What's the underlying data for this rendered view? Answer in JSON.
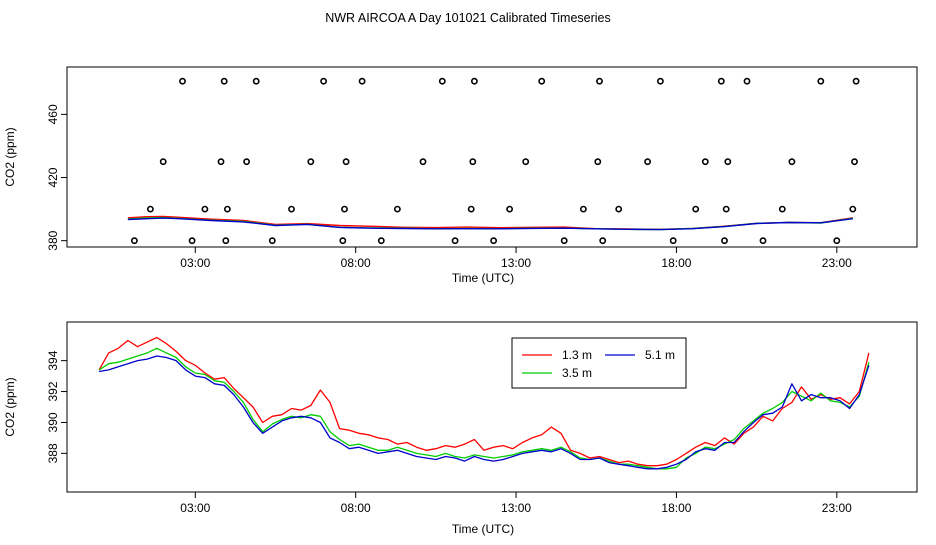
{
  "title": "NWR AIRCOA A  Day 101021  Calibrated Timeseries",
  "chart_data": [
    {
      "type": "scatter+line",
      "name": "top",
      "xlabel": "Time (UTC)",
      "ylabel": "CO2 (ppm)",
      "xlim": [
        -1.0,
        25.5
      ],
      "ylim": [
        376,
        490
      ],
      "xticks": [
        3,
        8,
        13,
        18,
        23
      ],
      "xtick_labels": [
        "03:00",
        "08:00",
        "13:00",
        "18:00",
        "23:00"
      ],
      "yticks": [
        380,
        420,
        460
      ],
      "ytick_labels": [
        "380",
        "420",
        "460"
      ],
      "calibration_points": {
        "x": [
          1.1,
          1.6,
          2.0,
          2.6,
          2.9,
          3.3,
          3.8,
          3.9,
          3.95,
          4.0,
          4.6,
          4.9,
          5.4,
          6.0,
          6.6,
          7.0,
          7.6,
          7.65,
          7.7,
          8.2,
          8.8,
          9.3,
          10.1,
          10.7,
          11.1,
          11.6,
          11.65,
          11.7,
          12.3,
          12.8,
          13.3,
          13.8,
          14.5,
          15.1,
          15.55,
          15.6,
          15.7,
          16.2,
          17.1,
          17.5,
          17.9,
          18.6,
          18.9,
          19.4,
          19.5,
          19.55,
          19.6,
          20.2,
          20.7,
          21.3,
          21.6,
          22.5,
          23.0,
          23.5,
          23.55,
          23.6
        ]
      },
      "series": [
        {
          "name": "1.3 m",
          "color": "#ff0000",
          "x": [
            0.9,
            1.5,
            2.0,
            2.5,
            3.5,
            4.5,
            5.5,
            6.5,
            7.5,
            8.5,
            9.5,
            10.5,
            11.5,
            12.5,
            13.5,
            14.5,
            15.5,
            16.5,
            17.5,
            18.5,
            19.5,
            20.5,
            21.5,
            22.5,
            23.5
          ],
          "values": [
            394.5,
            395.2,
            395.4,
            394.8,
            393.6,
            392.8,
            390.3,
            390.8,
            389.6,
            389.1,
            388.5,
            388.3,
            388.6,
            388.2,
            388.5,
            388.6,
            387.6,
            387.4,
            387.2,
            387.8,
            389.2,
            391.0,
            391.5,
            391.4,
            394.5
          ]
        },
        {
          "name": "3.5 m",
          "color": "#00cd00",
          "x": [
            0.9,
            1.5,
            2.0,
            2.5,
            3.5,
            4.5,
            5.5,
            6.5,
            7.5,
            8.5,
            9.5,
            10.5,
            11.5,
            12.5,
            13.5,
            14.5,
            15.5,
            16.5,
            17.5,
            18.5,
            19.5,
            20.5,
            21.5,
            22.5,
            23.5
          ],
          "values": [
            393.8,
            394.4,
            394.6,
            394.1,
            393.0,
            392.2,
            389.8,
            390.4,
            388.5,
            388.1,
            387.9,
            387.6,
            387.7,
            387.6,
            387.9,
            388.0,
            387.5,
            387.2,
            387.0,
            387.7,
            389.0,
            391.0,
            391.6,
            391.2,
            394.2
          ]
        },
        {
          "name": "5.1 m",
          "color": "#0000cd",
          "x": [
            0.9,
            1.5,
            2.0,
            2.5,
            3.5,
            4.5,
            5.5,
            6.5,
            7.5,
            8.5,
            9.5,
            10.5,
            11.5,
            12.5,
            13.5,
            14.5,
            15.5,
            16.5,
            17.5,
            18.5,
            19.5,
            20.5,
            21.5,
            22.5,
            23.5
          ],
          "values": [
            393.4,
            393.9,
            394.3,
            393.9,
            392.8,
            391.9,
            389.6,
            390.3,
            388.4,
            387.9,
            387.7,
            387.5,
            387.6,
            387.5,
            387.8,
            387.9,
            387.5,
            387.2,
            387.0,
            387.6,
            388.9,
            390.9,
            391.5,
            391.3,
            393.9
          ]
        }
      ]
    },
    {
      "type": "line",
      "name": "bottom",
      "xlabel": "Time (UTC)",
      "ylabel": "CO2 (ppm)",
      "xlim": [
        -1.0,
        25.5
      ],
      "ylim": [
        385.5,
        396.5
      ],
      "xticks": [
        3,
        8,
        13,
        18,
        23
      ],
      "xtick_labels": [
        "03:00",
        "08:00",
        "13:00",
        "18:00",
        "23:00"
      ],
      "yticks": [
        388,
        390,
        392,
        394
      ],
      "ytick_labels": [
        "388",
        "390",
        "392",
        "394"
      ],
      "legend_placement": "top-center-right",
      "series": [
        {
          "name": "1.3 m",
          "color": "#ff0000",
          "x": [
            0.0,
            0.3,
            0.6,
            0.9,
            1.2,
            1.5,
            1.8,
            2.1,
            2.4,
            2.7,
            3.0,
            3.3,
            3.6,
            3.9,
            4.2,
            4.5,
            4.8,
            5.1,
            5.4,
            5.7,
            6.0,
            6.3,
            6.6,
            6.9,
            7.2,
            7.5,
            7.8,
            8.1,
            8.4,
            8.7,
            9.0,
            9.3,
            9.6,
            9.9,
            10.2,
            10.5,
            10.8,
            11.1,
            11.4,
            11.7,
            12.0,
            12.3,
            12.6,
            12.9,
            13.2,
            13.5,
            13.8,
            14.1,
            14.4,
            14.7,
            15.0,
            15.3,
            15.6,
            15.9,
            16.2,
            16.5,
            16.8,
            17.1,
            17.4,
            17.7,
            18.0,
            18.3,
            18.6,
            18.9,
            19.2,
            19.5,
            19.8,
            20.1,
            20.4,
            20.7,
            21.0,
            21.3,
            21.6,
            21.9,
            22.2,
            22.5,
            22.8,
            23.1,
            23.4,
            23.7,
            24.0
          ],
          "values": [
            393.4,
            394.5,
            394.8,
            395.3,
            394.9,
            395.2,
            395.5,
            395.1,
            394.6,
            394.0,
            393.7,
            393.2,
            392.8,
            392.9,
            392.2,
            391.6,
            391.0,
            390.0,
            390.4,
            390.5,
            390.9,
            390.8,
            391.1,
            392.1,
            391.3,
            389.6,
            389.5,
            389.3,
            389.2,
            389.0,
            388.9,
            388.6,
            388.7,
            388.4,
            388.2,
            388.3,
            388.5,
            388.4,
            388.6,
            388.9,
            388.2,
            388.4,
            388.5,
            388.3,
            388.7,
            389.0,
            389.2,
            389.7,
            389.3,
            388.2,
            388.0,
            387.7,
            387.8,
            387.6,
            387.4,
            387.5,
            387.3,
            387.2,
            387.2,
            387.3,
            387.6,
            388.0,
            388.4,
            388.7,
            388.5,
            389.0,
            388.6,
            389.3,
            389.7,
            390.4,
            390.1,
            390.9,
            391.3,
            392.3,
            391.5,
            391.8,
            391.5,
            391.6,
            391.2,
            392.0,
            394.5
          ]
        },
        {
          "name": "3.5 m",
          "color": "#00cd00",
          "x": [
            0.0,
            0.3,
            0.6,
            0.9,
            1.2,
            1.5,
            1.8,
            2.1,
            2.4,
            2.7,
            3.0,
            3.3,
            3.6,
            3.9,
            4.2,
            4.5,
            4.8,
            5.1,
            5.4,
            5.7,
            6.0,
            6.3,
            6.6,
            6.9,
            7.2,
            7.5,
            7.8,
            8.1,
            8.4,
            8.7,
            9.0,
            9.3,
            9.6,
            9.9,
            10.2,
            10.5,
            10.8,
            11.1,
            11.4,
            11.7,
            12.0,
            12.3,
            12.6,
            12.9,
            13.2,
            13.5,
            13.8,
            14.1,
            14.4,
            14.7,
            15.0,
            15.3,
            15.6,
            15.9,
            16.2,
            16.5,
            16.8,
            17.1,
            17.4,
            17.7,
            18.0,
            18.3,
            18.6,
            18.9,
            19.2,
            19.5,
            19.8,
            20.1,
            20.4,
            20.7,
            21.0,
            21.3,
            21.6,
            21.9,
            22.2,
            22.5,
            22.8,
            23.1,
            23.4,
            23.7,
            24.0
          ],
          "values": [
            393.4,
            393.8,
            393.9,
            394.1,
            394.3,
            394.5,
            394.8,
            394.5,
            394.2,
            393.6,
            393.2,
            393.1,
            392.7,
            392.6,
            392.0,
            391.3,
            390.2,
            389.4,
            389.9,
            390.2,
            390.4,
            390.3,
            390.5,
            390.4,
            389.4,
            388.9,
            388.5,
            388.6,
            388.4,
            388.2,
            388.2,
            388.4,
            388.2,
            388.0,
            387.9,
            387.8,
            388.0,
            387.8,
            387.7,
            387.9,
            387.8,
            387.7,
            387.8,
            387.9,
            388.1,
            388.2,
            388.3,
            388.2,
            388.4,
            388.1,
            387.7,
            387.6,
            387.7,
            387.5,
            387.3,
            387.3,
            387.2,
            387.1,
            387.0,
            387.0,
            387.1,
            387.7,
            388.0,
            388.4,
            388.3,
            388.6,
            388.9,
            389.6,
            390.1,
            390.6,
            390.9,
            391.3,
            392.0,
            391.7,
            391.4,
            391.9,
            391.4,
            391.3,
            391.0,
            391.7,
            393.9
          ]
        },
        {
          "name": "5.1 m",
          "color": "#0000cd",
          "x": [
            0.0,
            0.3,
            0.6,
            0.9,
            1.2,
            1.5,
            1.8,
            2.1,
            2.4,
            2.7,
            3.0,
            3.3,
            3.6,
            3.9,
            4.2,
            4.5,
            4.8,
            5.1,
            5.4,
            5.7,
            6.0,
            6.3,
            6.6,
            6.9,
            7.2,
            7.5,
            7.8,
            8.1,
            8.4,
            8.7,
            9.0,
            9.3,
            9.6,
            9.9,
            10.2,
            10.5,
            10.8,
            11.1,
            11.4,
            11.7,
            12.0,
            12.3,
            12.6,
            12.9,
            13.2,
            13.5,
            13.8,
            14.1,
            14.4,
            14.7,
            15.0,
            15.3,
            15.6,
            15.9,
            16.2,
            16.5,
            16.8,
            17.1,
            17.4,
            17.7,
            18.0,
            18.3,
            18.6,
            18.9,
            19.2,
            19.5,
            19.8,
            20.1,
            20.4,
            20.7,
            21.0,
            21.3,
            21.6,
            21.9,
            22.2,
            22.5,
            22.8,
            23.1,
            23.4,
            23.7,
            24.0
          ],
          "values": [
            393.3,
            393.4,
            393.6,
            393.8,
            394.0,
            394.1,
            394.3,
            394.2,
            394.0,
            393.4,
            393.0,
            392.9,
            392.5,
            392.4,
            391.8,
            391.0,
            390.0,
            389.3,
            389.7,
            390.1,
            390.3,
            390.4,
            390.3,
            390.0,
            389.0,
            388.7,
            388.3,
            388.4,
            388.2,
            388.0,
            388.1,
            388.2,
            388.0,
            387.8,
            387.7,
            387.6,
            387.8,
            387.7,
            387.5,
            387.8,
            387.6,
            387.5,
            387.6,
            387.8,
            388.0,
            388.1,
            388.2,
            388.1,
            388.3,
            388.0,
            387.6,
            387.6,
            387.7,
            387.4,
            387.3,
            387.2,
            387.1,
            387.0,
            387.0,
            387.1,
            387.3,
            387.6,
            388.1,
            388.3,
            388.2,
            388.7,
            388.7,
            389.4,
            390.0,
            390.5,
            390.6,
            391.0,
            392.5,
            391.4,
            391.8,
            391.6,
            391.6,
            391.4,
            390.9,
            391.8,
            393.7
          ]
        }
      ]
    }
  ]
}
